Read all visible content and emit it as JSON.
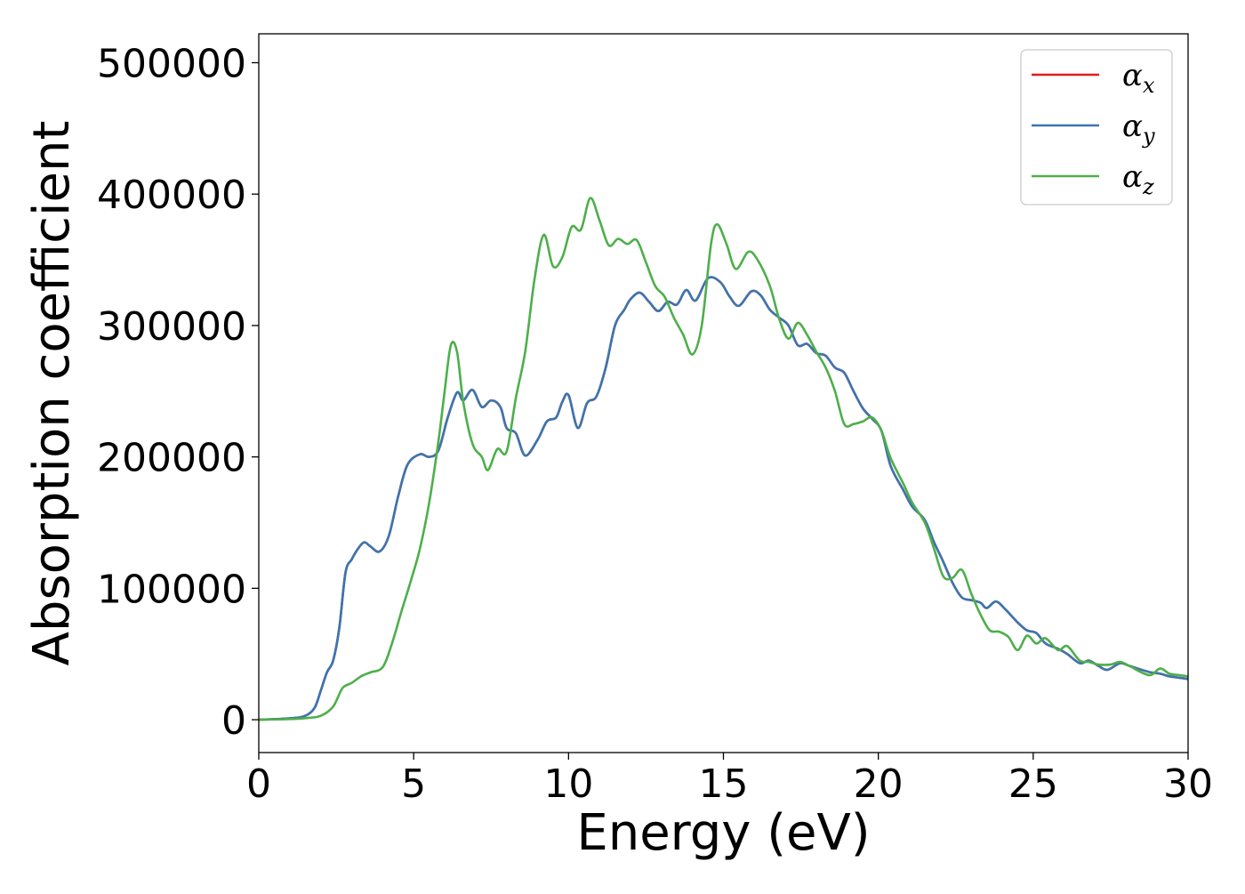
{
  "chart_data": {
    "type": "line",
    "title": "",
    "xlabel": "Energy (eV)",
    "ylabel": "Absorption coefficient",
    "xlim": [
      0,
      30
    ],
    "ylim": [
      -25000,
      522000
    ],
    "xticks": [
      0,
      5,
      10,
      15,
      20,
      25,
      30
    ],
    "yticks": [
      0,
      100000,
      200000,
      300000,
      400000,
      500000
    ],
    "xtick_labels": [
      "0",
      "5",
      "10",
      "15",
      "20",
      "25",
      "30"
    ],
    "ytick_labels": [
      "0",
      "100000",
      "200000",
      "300000",
      "400000",
      "500000"
    ],
    "grid": false,
    "legend_position": "top-right",
    "series": [
      {
        "name": "α",
        "sub": "x",
        "color": "#e41a1c",
        "points": [
          [
            0,
            0
          ],
          [
            1,
            1000
          ],
          [
            1.5,
            3000
          ],
          [
            1.8,
            9000
          ],
          [
            2.0,
            22000
          ],
          [
            2.2,
            36000
          ],
          [
            2.4,
            45000
          ],
          [
            2.6,
            70000
          ],
          [
            2.8,
            112000
          ],
          [
            3.0,
            122000
          ],
          [
            3.2,
            130000
          ],
          [
            3.4,
            135000
          ],
          [
            3.6,
            132000
          ],
          [
            3.9,
            128000
          ],
          [
            4.2,
            140000
          ],
          [
            4.5,
            170000
          ],
          [
            4.8,
            194000
          ],
          [
            5.2,
            202000
          ],
          [
            5.5,
            200000
          ],
          [
            5.8,
            205000
          ],
          [
            6.1,
            230000
          ],
          [
            6.4,
            249000
          ],
          [
            6.6,
            243000
          ],
          [
            6.9,
            251000
          ],
          [
            7.2,
            238000
          ],
          [
            7.5,
            243000
          ],
          [
            7.8,
            238000
          ],
          [
            8.0,
            222000
          ],
          [
            8.3,
            218000
          ],
          [
            8.6,
            201000
          ],
          [
            9.0,
            213000
          ],
          [
            9.3,
            227000
          ],
          [
            9.6,
            230000
          ],
          [
            9.8,
            242000
          ],
          [
            10.0,
            247000
          ],
          [
            10.3,
            222000
          ],
          [
            10.6,
            241000
          ],
          [
            10.9,
            246000
          ],
          [
            11.2,
            268000
          ],
          [
            11.5,
            300000
          ],
          [
            11.8,
            312000
          ],
          [
            12.0,
            320000
          ],
          [
            12.3,
            325000
          ],
          [
            12.6,
            318000
          ],
          [
            12.9,
            311000
          ],
          [
            13.2,
            318000
          ],
          [
            13.5,
            316000
          ],
          [
            13.8,
            327000
          ],
          [
            14.1,
            319000
          ],
          [
            14.5,
            336000
          ],
          [
            14.9,
            333000
          ],
          [
            15.2,
            322000
          ],
          [
            15.5,
            315000
          ],
          [
            15.9,
            326000
          ],
          [
            16.2,
            323000
          ],
          [
            16.5,
            312000
          ],
          [
            16.8,
            306000
          ],
          [
            17.1,
            300000
          ],
          [
            17.4,
            285000
          ],
          [
            17.7,
            286000
          ],
          [
            18.0,
            279000
          ],
          [
            18.3,
            277000
          ],
          [
            18.6,
            268000
          ],
          [
            18.9,
            264000
          ],
          [
            19.2,
            250000
          ],
          [
            19.5,
            237000
          ],
          [
            19.8,
            229000
          ],
          [
            20.1,
            220000
          ],
          [
            20.4,
            193000
          ],
          [
            20.8,
            175000
          ],
          [
            21.1,
            162000
          ],
          [
            21.5,
            152000
          ],
          [
            21.8,
            135000
          ],
          [
            22.1,
            120000
          ],
          [
            22.4,
            104000
          ],
          [
            22.7,
            93000
          ],
          [
            23.0,
            91000
          ],
          [
            23.3,
            89000
          ],
          [
            23.5,
            85000
          ],
          [
            23.8,
            90000
          ],
          [
            24.1,
            84000
          ],
          [
            24.5,
            74000
          ],
          [
            24.8,
            68000
          ],
          [
            25.1,
            66000
          ],
          [
            25.4,
            58000
          ],
          [
            25.8,
            54000
          ],
          [
            26.1,
            50000
          ],
          [
            26.5,
            43000
          ],
          [
            26.8,
            45000
          ],
          [
            27.1,
            41000
          ],
          [
            27.4,
            38000
          ],
          [
            27.8,
            43000
          ],
          [
            28.1,
            41000
          ],
          [
            28.5,
            38000
          ],
          [
            28.8,
            36000
          ],
          [
            29.1,
            35000
          ],
          [
            29.4,
            33000
          ],
          [
            29.7,
            32000
          ],
          [
            30.0,
            31000
          ]
        ]
      },
      {
        "name": "α",
        "sub": "y",
        "color": "#3a76b0",
        "points": [
          [
            0,
            0
          ],
          [
            1,
            1000
          ],
          [
            1.5,
            3000
          ],
          [
            1.8,
            9000
          ],
          [
            2.0,
            22000
          ],
          [
            2.2,
            36000
          ],
          [
            2.4,
            45000
          ],
          [
            2.6,
            70000
          ],
          [
            2.8,
            112000
          ],
          [
            3.0,
            122000
          ],
          [
            3.2,
            130000
          ],
          [
            3.4,
            135000
          ],
          [
            3.6,
            132000
          ],
          [
            3.9,
            128000
          ],
          [
            4.2,
            140000
          ],
          [
            4.5,
            170000
          ],
          [
            4.8,
            194000
          ],
          [
            5.2,
            202000
          ],
          [
            5.5,
            200000
          ],
          [
            5.8,
            205000
          ],
          [
            6.1,
            230000
          ],
          [
            6.4,
            249000
          ],
          [
            6.6,
            243000
          ],
          [
            6.9,
            251000
          ],
          [
            7.2,
            238000
          ],
          [
            7.5,
            243000
          ],
          [
            7.8,
            238000
          ],
          [
            8.0,
            222000
          ],
          [
            8.3,
            218000
          ],
          [
            8.6,
            201000
          ],
          [
            9.0,
            213000
          ],
          [
            9.3,
            227000
          ],
          [
            9.6,
            230000
          ],
          [
            9.8,
            242000
          ],
          [
            10.0,
            247000
          ],
          [
            10.3,
            222000
          ],
          [
            10.6,
            241000
          ],
          [
            10.9,
            246000
          ],
          [
            11.2,
            268000
          ],
          [
            11.5,
            300000
          ],
          [
            11.8,
            312000
          ],
          [
            12.0,
            320000
          ],
          [
            12.3,
            325000
          ],
          [
            12.6,
            318000
          ],
          [
            12.9,
            311000
          ],
          [
            13.2,
            318000
          ],
          [
            13.5,
            316000
          ],
          [
            13.8,
            327000
          ],
          [
            14.1,
            319000
          ],
          [
            14.5,
            336000
          ],
          [
            14.9,
            333000
          ],
          [
            15.2,
            322000
          ],
          [
            15.5,
            315000
          ],
          [
            15.9,
            326000
          ],
          [
            16.2,
            323000
          ],
          [
            16.5,
            312000
          ],
          [
            16.8,
            306000
          ],
          [
            17.1,
            300000
          ],
          [
            17.4,
            285000
          ],
          [
            17.7,
            286000
          ],
          [
            18.0,
            279000
          ],
          [
            18.3,
            277000
          ],
          [
            18.6,
            268000
          ],
          [
            18.9,
            264000
          ],
          [
            19.2,
            250000
          ],
          [
            19.5,
            237000
          ],
          [
            19.8,
            229000
          ],
          [
            20.1,
            220000
          ],
          [
            20.4,
            193000
          ],
          [
            20.8,
            175000
          ],
          [
            21.1,
            162000
          ],
          [
            21.5,
            152000
          ],
          [
            21.8,
            135000
          ],
          [
            22.1,
            120000
          ],
          [
            22.4,
            104000
          ],
          [
            22.7,
            93000
          ],
          [
            23.0,
            91000
          ],
          [
            23.3,
            89000
          ],
          [
            23.5,
            85000
          ],
          [
            23.8,
            90000
          ],
          [
            24.1,
            84000
          ],
          [
            24.5,
            74000
          ],
          [
            24.8,
            68000
          ],
          [
            25.1,
            66000
          ],
          [
            25.4,
            58000
          ],
          [
            25.8,
            54000
          ],
          [
            26.1,
            50000
          ],
          [
            26.5,
            43000
          ],
          [
            26.8,
            45000
          ],
          [
            27.1,
            41000
          ],
          [
            27.4,
            38000
          ],
          [
            27.8,
            43000
          ],
          [
            28.1,
            41000
          ],
          [
            28.5,
            38000
          ],
          [
            28.8,
            36000
          ],
          [
            29.1,
            35000
          ],
          [
            29.4,
            33000
          ],
          [
            29.7,
            32000
          ],
          [
            30.0,
            31000
          ]
        ]
      },
      {
        "name": "α",
        "sub": "z",
        "color": "#4daf4a",
        "points": [
          [
            0,
            0
          ],
          [
            1,
            500
          ],
          [
            1.5,
            1200
          ],
          [
            2.0,
            3000
          ],
          [
            2.4,
            10000
          ],
          [
            2.7,
            24000
          ],
          [
            3.0,
            28000
          ],
          [
            3.3,
            33000
          ],
          [
            3.6,
            36000
          ],
          [
            4.0,
            40000
          ],
          [
            4.3,
            58000
          ],
          [
            4.6,
            82000
          ],
          [
            4.9,
            105000
          ],
          [
            5.2,
            130000
          ],
          [
            5.5,
            165000
          ],
          [
            5.8,
            212000
          ],
          [
            6.0,
            250000
          ],
          [
            6.2,
            285000
          ],
          [
            6.4,
            280000
          ],
          [
            6.6,
            242000
          ],
          [
            6.9,
            210000
          ],
          [
            7.2,
            200000
          ],
          [
            7.4,
            190000
          ],
          [
            7.7,
            206000
          ],
          [
            8.0,
            204000
          ],
          [
            8.3,
            245000
          ],
          [
            8.6,
            280000
          ],
          [
            8.9,
            335000
          ],
          [
            9.2,
            369000
          ],
          [
            9.5,
            345000
          ],
          [
            9.8,
            352000
          ],
          [
            10.1,
            375000
          ],
          [
            10.4,
            373000
          ],
          [
            10.7,
            397000
          ],
          [
            11.0,
            380000
          ],
          [
            11.3,
            361000
          ],
          [
            11.6,
            366000
          ],
          [
            11.9,
            362000
          ],
          [
            12.2,
            365000
          ],
          [
            12.5,
            348000
          ],
          [
            12.8,
            330000
          ],
          [
            13.1,
            322000
          ],
          [
            13.4,
            306000
          ],
          [
            13.7,
            293000
          ],
          [
            14.0,
            278000
          ],
          [
            14.3,
            300000
          ],
          [
            14.6,
            362000
          ],
          [
            14.8,
            377000
          ],
          [
            15.1,
            362000
          ],
          [
            15.4,
            343000
          ],
          [
            15.8,
            356000
          ],
          [
            16.1,
            350000
          ],
          [
            16.5,
            330000
          ],
          [
            16.8,
            305000
          ],
          [
            17.1,
            290000
          ],
          [
            17.4,
            302000
          ],
          [
            17.7,
            293000
          ],
          [
            18.0,
            280000
          ],
          [
            18.3,
            268000
          ],
          [
            18.6,
            250000
          ],
          [
            18.9,
            225000
          ],
          [
            19.2,
            225000
          ],
          [
            19.5,
            227000
          ],
          [
            19.8,
            230000
          ],
          [
            20.1,
            220000
          ],
          [
            20.4,
            199000
          ],
          [
            20.8,
            180000
          ],
          [
            21.1,
            165000
          ],
          [
            21.5,
            150000
          ],
          [
            21.8,
            130000
          ],
          [
            22.1,
            109000
          ],
          [
            22.4,
            108000
          ],
          [
            22.7,
            114000
          ],
          [
            23.0,
            96000
          ],
          [
            23.3,
            80000
          ],
          [
            23.6,
            68000
          ],
          [
            23.9,
            67000
          ],
          [
            24.2,
            63000
          ],
          [
            24.5,
            53000
          ],
          [
            24.8,
            64000
          ],
          [
            25.1,
            58000
          ],
          [
            25.4,
            62000
          ],
          [
            25.8,
            53000
          ],
          [
            26.1,
            56000
          ],
          [
            26.5,
            45000
          ],
          [
            26.8,
            44000
          ],
          [
            27.1,
            42000
          ],
          [
            27.5,
            42000
          ],
          [
            27.8,
            44000
          ],
          [
            28.1,
            41000
          ],
          [
            28.5,
            36000
          ],
          [
            28.8,
            34000
          ],
          [
            29.1,
            39000
          ],
          [
            29.4,
            35000
          ],
          [
            29.7,
            34000
          ],
          [
            30.0,
            33000
          ]
        ]
      }
    ]
  }
}
